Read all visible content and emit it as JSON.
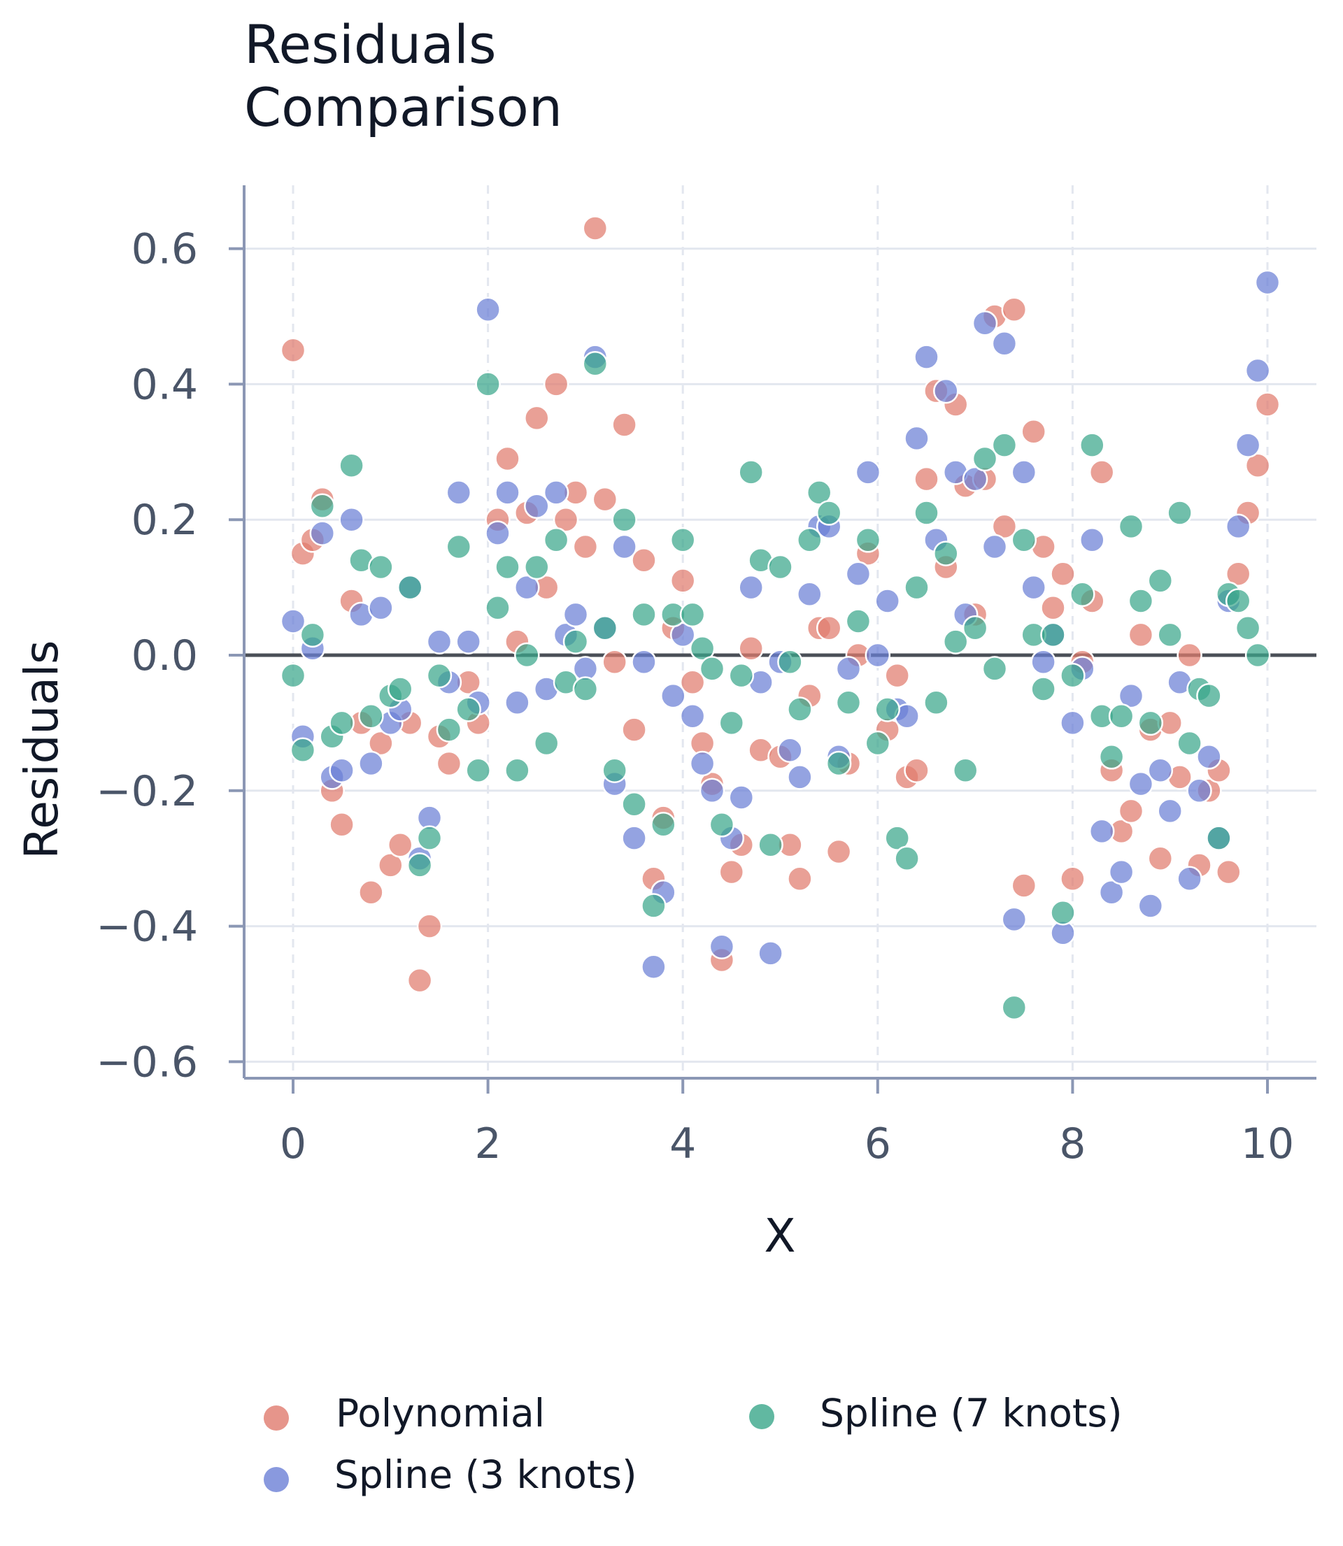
{
  "chart_data": {
    "type": "scatter",
    "title": [
      "Residuals",
      "Comparison"
    ],
    "xlabel": "X",
    "ylabel": "Residuals",
    "xlim": [
      -0.5,
      10.5
    ],
    "ylim": [
      -0.66,
      0.69
    ],
    "x_ticks": [
      0,
      2,
      4,
      6,
      8,
      10
    ],
    "x_tick_labels": [
      "0",
      "2",
      "4",
      "6",
      "8",
      "10"
    ],
    "y_ticks": [
      -0.6,
      -0.4,
      -0.2,
      0.0,
      0.2,
      0.4,
      0.6
    ],
    "y_tick_labels": [
      "−0.6",
      "−0.4",
      "−0.2",
      "0.0",
      "0.2",
      "0.4",
      "0.6"
    ],
    "grid": true,
    "reference_line_y": 0,
    "legend_position": "bottom",
    "series": [
      {
        "name": "Polynomial",
        "color": "#e07b6e",
        "points": [
          [
            0.0,
            0.45
          ],
          [
            0.1,
            0.15
          ],
          [
            0.2,
            0.17
          ],
          [
            0.3,
            0.23
          ],
          [
            0.4,
            -0.2
          ],
          [
            0.5,
            -0.25
          ],
          [
            0.6,
            0.08
          ],
          [
            0.7,
            -0.1
          ],
          [
            0.8,
            -0.35
          ],
          [
            0.9,
            -0.13
          ],
          [
            1.0,
            -0.31
          ],
          [
            1.1,
            -0.28
          ],
          [
            1.2,
            -0.1
          ],
          [
            1.3,
            -0.48
          ],
          [
            1.4,
            -0.4
          ],
          [
            1.5,
            -0.12
          ],
          [
            1.6,
            -0.16
          ],
          [
            1.8,
            -0.04
          ],
          [
            1.9,
            -0.1
          ],
          [
            2.1,
            0.2
          ],
          [
            2.2,
            0.29
          ],
          [
            2.3,
            0.02
          ],
          [
            2.4,
            0.21
          ],
          [
            2.5,
            0.35
          ],
          [
            2.6,
            0.1
          ],
          [
            2.7,
            0.4
          ],
          [
            2.8,
            0.2
          ],
          [
            2.9,
            0.24
          ],
          [
            3.0,
            0.16
          ],
          [
            3.1,
            0.63
          ],
          [
            3.2,
            0.23
          ],
          [
            3.3,
            -0.01
          ],
          [
            3.4,
            0.34
          ],
          [
            3.5,
            -0.11
          ],
          [
            3.6,
            0.14
          ],
          [
            3.7,
            -0.33
          ],
          [
            3.8,
            -0.24
          ],
          [
            3.9,
            0.04
          ],
          [
            4.0,
            0.11
          ],
          [
            4.1,
            -0.04
          ],
          [
            4.2,
            -0.13
          ],
          [
            4.3,
            -0.19
          ],
          [
            4.4,
            -0.45
          ],
          [
            4.5,
            -0.32
          ],
          [
            4.6,
            -0.28
          ],
          [
            4.7,
            0.01
          ],
          [
            4.8,
            -0.14
          ],
          [
            5.0,
            -0.15
          ],
          [
            5.1,
            -0.28
          ],
          [
            5.2,
            -0.33
          ],
          [
            5.3,
            -0.06
          ],
          [
            5.4,
            0.04
          ],
          [
            5.5,
            0.04
          ],
          [
            5.6,
            -0.29
          ],
          [
            5.7,
            -0.16
          ],
          [
            5.8,
            0.0
          ],
          [
            5.9,
            0.15
          ],
          [
            6.1,
            -0.11
          ],
          [
            6.2,
            -0.03
          ],
          [
            6.3,
            -0.18
          ],
          [
            6.4,
            -0.17
          ],
          [
            6.5,
            0.26
          ],
          [
            6.6,
            0.39
          ],
          [
            6.7,
            0.13
          ],
          [
            6.8,
            0.37
          ],
          [
            6.9,
            0.25
          ],
          [
            7.0,
            0.06
          ],
          [
            7.1,
            0.26
          ],
          [
            7.2,
            0.5
          ],
          [
            7.3,
            0.19
          ],
          [
            7.4,
            0.51
          ],
          [
            7.5,
            -0.34
          ],
          [
            7.6,
            0.33
          ],
          [
            7.7,
            0.16
          ],
          [
            7.8,
            0.07
          ],
          [
            7.9,
            0.12
          ],
          [
            8.0,
            -0.33
          ],
          [
            8.1,
            -0.01
          ],
          [
            8.2,
            0.08
          ],
          [
            8.3,
            0.27
          ],
          [
            8.4,
            -0.17
          ],
          [
            8.5,
            -0.26
          ],
          [
            8.6,
            -0.23
          ],
          [
            8.7,
            0.03
          ],
          [
            8.8,
            -0.11
          ],
          [
            8.9,
            -0.3
          ],
          [
            9.0,
            -0.1
          ],
          [
            9.1,
            -0.18
          ],
          [
            9.2,
            0.0
          ],
          [
            9.3,
            -0.31
          ],
          [
            9.4,
            -0.2
          ],
          [
            9.5,
            -0.17
          ],
          [
            9.6,
            -0.32
          ],
          [
            9.7,
            0.12
          ],
          [
            9.8,
            0.21
          ],
          [
            9.9,
            0.28
          ],
          [
            10.0,
            0.37
          ]
        ]
      },
      {
        "name": "Spline (3 knots)",
        "color": "#6b7fd6",
        "points": [
          [
            0.0,
            0.05
          ],
          [
            0.1,
            -0.12
          ],
          [
            0.2,
            0.01
          ],
          [
            0.3,
            0.18
          ],
          [
            0.4,
            -0.18
          ],
          [
            0.5,
            -0.17
          ],
          [
            0.6,
            0.2
          ],
          [
            0.7,
            0.06
          ],
          [
            0.8,
            -0.16
          ],
          [
            0.9,
            0.07
          ],
          [
            1.0,
            -0.1
          ],
          [
            1.1,
            -0.08
          ],
          [
            1.2,
            0.1
          ],
          [
            1.3,
            -0.3
          ],
          [
            1.4,
            -0.24
          ],
          [
            1.5,
            0.02
          ],
          [
            1.6,
            -0.04
          ],
          [
            1.7,
            0.24
          ],
          [
            1.8,
            0.02
          ],
          [
            1.9,
            -0.07
          ],
          [
            2.0,
            0.51
          ],
          [
            2.1,
            0.18
          ],
          [
            2.2,
            0.24
          ],
          [
            2.3,
            -0.07
          ],
          [
            2.4,
            0.1
          ],
          [
            2.5,
            0.22
          ],
          [
            2.6,
            -0.05
          ],
          [
            2.7,
            0.24
          ],
          [
            2.8,
            0.03
          ],
          [
            2.9,
            0.06
          ],
          [
            3.0,
            -0.02
          ],
          [
            3.1,
            0.44
          ],
          [
            3.2,
            0.04
          ],
          [
            3.3,
            -0.19
          ],
          [
            3.4,
            0.16
          ],
          [
            3.5,
            -0.27
          ],
          [
            3.6,
            -0.01
          ],
          [
            3.7,
            -0.46
          ],
          [
            3.8,
            -0.35
          ],
          [
            3.9,
            -0.06
          ],
          [
            4.0,
            0.03
          ],
          [
            4.1,
            -0.09
          ],
          [
            4.2,
            -0.16
          ],
          [
            4.3,
            -0.2
          ],
          [
            4.4,
            -0.43
          ],
          [
            4.5,
            -0.27
          ],
          [
            4.6,
            -0.21
          ],
          [
            4.7,
            0.1
          ],
          [
            4.8,
            -0.04
          ],
          [
            4.9,
            -0.44
          ],
          [
            5.0,
            -0.01
          ],
          [
            5.1,
            -0.14
          ],
          [
            5.2,
            -0.18
          ],
          [
            5.3,
            0.09
          ],
          [
            5.4,
            0.19
          ],
          [
            5.5,
            0.19
          ],
          [
            5.6,
            -0.15
          ],
          [
            5.7,
            -0.02
          ],
          [
            5.8,
            0.12
          ],
          [
            5.9,
            0.27
          ],
          [
            6.0,
            0.0
          ],
          [
            6.1,
            0.08
          ],
          [
            6.2,
            -0.08
          ],
          [
            6.3,
            -0.09
          ],
          [
            6.4,
            0.32
          ],
          [
            6.5,
            0.44
          ],
          [
            6.6,
            0.17
          ],
          [
            6.7,
            0.39
          ],
          [
            6.8,
            0.27
          ],
          [
            6.9,
            0.06
          ],
          [
            7.0,
            0.26
          ],
          [
            7.1,
            0.49
          ],
          [
            7.2,
            0.16
          ],
          [
            7.3,
            0.46
          ],
          [
            7.4,
            -0.39
          ],
          [
            7.5,
            0.27
          ],
          [
            7.6,
            0.1
          ],
          [
            7.7,
            -0.01
          ],
          [
            7.8,
            0.03
          ],
          [
            7.9,
            -0.41
          ],
          [
            8.0,
            -0.1
          ],
          [
            8.1,
            -0.02
          ],
          [
            8.2,
            0.17
          ],
          [
            8.3,
            -0.26
          ],
          [
            8.4,
            -0.35
          ],
          [
            8.5,
            -0.32
          ],
          [
            8.6,
            -0.06
          ],
          [
            8.7,
            -0.19
          ],
          [
            8.8,
            -0.37
          ],
          [
            8.9,
            -0.17
          ],
          [
            9.0,
            -0.23
          ],
          [
            9.1,
            -0.04
          ],
          [
            9.2,
            -0.33
          ],
          [
            9.3,
            -0.2
          ],
          [
            9.4,
            -0.15
          ],
          [
            9.5,
            -0.27
          ],
          [
            9.6,
            0.08
          ],
          [
            9.7,
            0.19
          ],
          [
            9.8,
            0.31
          ],
          [
            9.9,
            0.42
          ],
          [
            10.0,
            0.55
          ]
        ]
      },
      {
        "name": "Spline (7 knots)",
        "color": "#3aa68a",
        "points": [
          [
            0.0,
            -0.03
          ],
          [
            0.1,
            -0.14
          ],
          [
            0.2,
            0.03
          ],
          [
            0.3,
            0.22
          ],
          [
            0.4,
            -0.12
          ],
          [
            0.5,
            -0.1
          ],
          [
            0.6,
            0.28
          ],
          [
            0.7,
            0.14
          ],
          [
            0.8,
            -0.09
          ],
          [
            0.9,
            0.13
          ],
          [
            1.0,
            -0.06
          ],
          [
            1.1,
            -0.05
          ],
          [
            1.2,
            0.1
          ],
          [
            1.3,
            -0.31
          ],
          [
            1.4,
            -0.27
          ],
          [
            1.5,
            -0.03
          ],
          [
            1.6,
            -0.11
          ],
          [
            1.7,
            0.16
          ],
          [
            1.8,
            -0.08
          ],
          [
            1.9,
            -0.17
          ],
          [
            2.0,
            0.4
          ],
          [
            2.1,
            0.07
          ],
          [
            2.2,
            0.13
          ],
          [
            2.3,
            -0.17
          ],
          [
            2.4,
            0.0
          ],
          [
            2.5,
            0.13
          ],
          [
            2.6,
            -0.13
          ],
          [
            2.7,
            0.17
          ],
          [
            2.8,
            -0.04
          ],
          [
            2.9,
            0.02
          ],
          [
            3.0,
            -0.05
          ],
          [
            3.1,
            0.43
          ],
          [
            3.2,
            0.04
          ],
          [
            3.3,
            -0.17
          ],
          [
            3.4,
            0.2
          ],
          [
            3.5,
            -0.22
          ],
          [
            3.6,
            0.06
          ],
          [
            3.7,
            -0.37
          ],
          [
            3.8,
            -0.25
          ],
          [
            3.9,
            0.06
          ],
          [
            4.0,
            0.17
          ],
          [
            4.1,
            0.06
          ],
          [
            4.2,
            0.01
          ],
          [
            4.3,
            -0.02
          ],
          [
            4.4,
            -0.25
          ],
          [
            4.5,
            -0.1
          ],
          [
            4.6,
            -0.03
          ],
          [
            4.7,
            0.27
          ],
          [
            4.8,
            0.14
          ],
          [
            4.9,
            -0.28
          ],
          [
            5.0,
            0.13
          ],
          [
            5.1,
            -0.01
          ],
          [
            5.2,
            -0.08
          ],
          [
            5.3,
            0.17
          ],
          [
            5.4,
            0.24
          ],
          [
            5.5,
            0.21
          ],
          [
            5.6,
            -0.16
          ],
          [
            5.7,
            -0.07
          ],
          [
            5.8,
            0.05
          ],
          [
            5.9,
            0.17
          ],
          [
            6.0,
            -0.13
          ],
          [
            6.1,
            -0.08
          ],
          [
            6.2,
            -0.27
          ],
          [
            6.3,
            -0.3
          ],
          [
            6.4,
            0.1
          ],
          [
            6.5,
            0.21
          ],
          [
            6.6,
            -0.07
          ],
          [
            6.7,
            0.15
          ],
          [
            6.8,
            0.02
          ],
          [
            6.9,
            -0.17
          ],
          [
            7.0,
            0.04
          ],
          [
            7.1,
            0.29
          ],
          [
            7.2,
            -0.02
          ],
          [
            7.3,
            0.31
          ],
          [
            7.4,
            -0.52
          ],
          [
            7.5,
            0.17
          ],
          [
            7.6,
            0.03
          ],
          [
            7.7,
            -0.05
          ],
          [
            7.8,
            0.03
          ],
          [
            7.9,
            -0.38
          ],
          [
            8.0,
            -0.03
          ],
          [
            8.1,
            0.09
          ],
          [
            8.2,
            0.31
          ],
          [
            8.3,
            -0.09
          ],
          [
            8.4,
            -0.15
          ],
          [
            8.5,
            -0.09
          ],
          [
            8.6,
            0.19
          ],
          [
            8.7,
            0.08
          ],
          [
            8.8,
            -0.1
          ],
          [
            8.9,
            0.11
          ],
          [
            9.0,
            0.03
          ],
          [
            9.1,
            0.21
          ],
          [
            9.2,
            -0.13
          ],
          [
            9.3,
            -0.05
          ],
          [
            9.4,
            -0.06
          ],
          [
            9.5,
            -0.27
          ],
          [
            9.6,
            0.09
          ],
          [
            9.7,
            0.08
          ],
          [
            9.8,
            0.04
          ],
          [
            9.9,
            0.0
          ]
        ]
      }
    ]
  }
}
